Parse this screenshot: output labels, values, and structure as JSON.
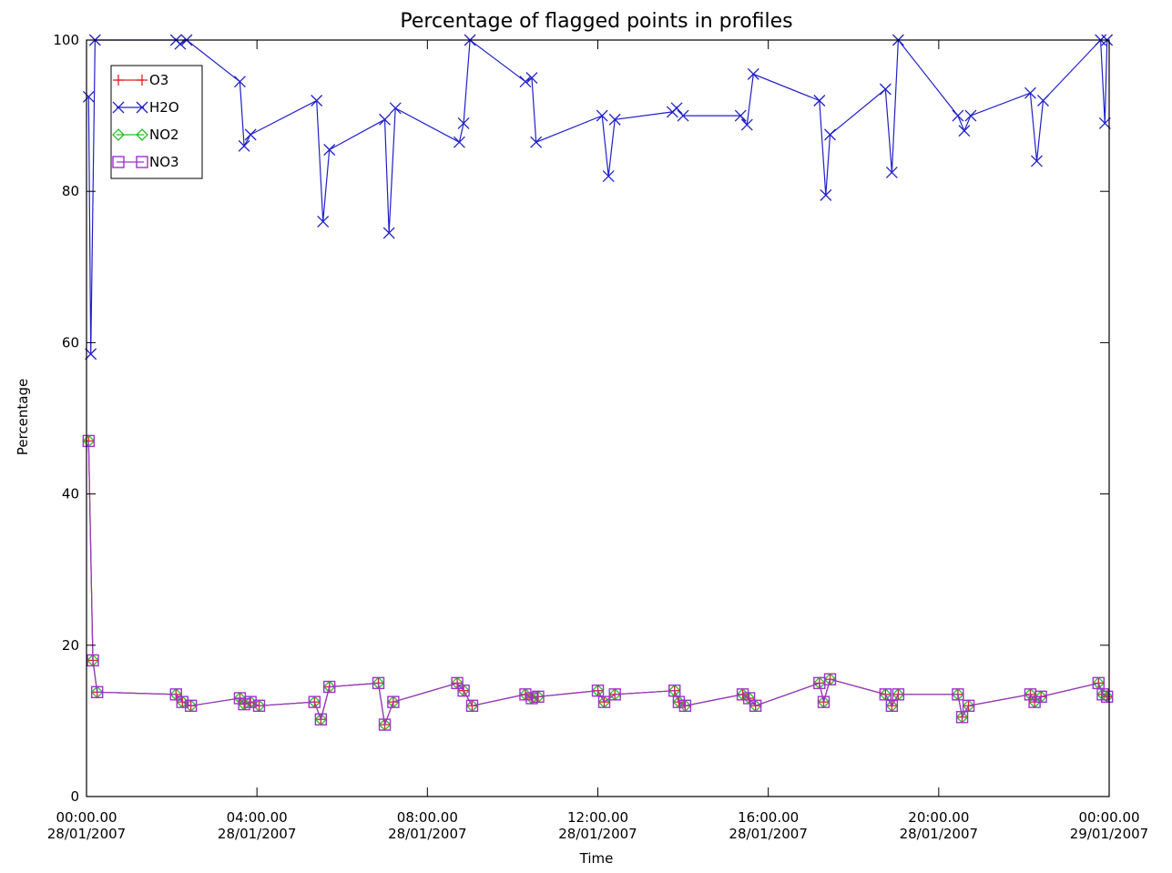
{
  "chart_data": {
    "type": "line",
    "title": "Percentage of flagged points in profiles",
    "xlabel": "Time",
    "ylabel": "Percentage",
    "ylim": [
      0,
      100
    ],
    "xlim_hours": [
      0,
      24
    ],
    "yticks": [
      "0",
      "20",
      "40",
      "60",
      "80",
      "100"
    ],
    "xticks": [
      {
        "time": "00:00.00",
        "date": "28/01/2007"
      },
      {
        "time": "04:00.00",
        "date": "28/01/2007"
      },
      {
        "time": "08:00.00",
        "date": "28/01/2007"
      },
      {
        "time": "12:00.00",
        "date": "28/01/2007"
      },
      {
        "time": "16:00.00",
        "date": "28/01/2007"
      },
      {
        "time": "20:00.00",
        "date": "28/01/2007"
      },
      {
        "time": "00:00.00",
        "date": "29/01/2007"
      }
    ],
    "grid": false,
    "legend_position": "top-left",
    "colors": {
      "O3": "#e0201e",
      "H2O": "#2020c8",
      "NO2": "#22c022",
      "NO3": "#a030d0",
      "axes": "#000000",
      "background": "#ffffff"
    },
    "series": [
      {
        "name": "O3",
        "marker": "plus",
        "x": [
          0.05,
          0.15,
          0.25,
          2.1,
          2.25,
          2.45,
          3.6,
          3.7,
          3.85,
          4.05,
          5.35,
          5.5,
          5.7,
          6.85,
          7.0,
          7.2,
          8.7,
          8.85,
          9.05,
          10.3,
          10.45,
          10.6,
          12.0,
          12.15,
          12.4,
          13.8,
          13.9,
          14.05,
          15.4,
          15.55,
          15.7,
          17.2,
          17.3,
          17.45,
          18.75,
          18.9,
          19.05,
          20.45,
          20.55,
          20.7,
          22.15,
          22.25,
          22.4,
          23.75,
          23.85,
          23.95
        ],
        "values": [
          47,
          18,
          13.8,
          13.5,
          12.5,
          12,
          13,
          12.2,
          12.5,
          12,
          12.5,
          10.2,
          14.5,
          15,
          9.5,
          12.5,
          15,
          14,
          12,
          13.5,
          13,
          13.2,
          14,
          12.5,
          13.5,
          14,
          12.5,
          12,
          13.5,
          13,
          12,
          15,
          12.5,
          15.5,
          13.5,
          12,
          13.5,
          13.5,
          10.5,
          12,
          13.5,
          12.5,
          13.2,
          15,
          13.5,
          13.2
        ]
      },
      {
        "name": "H2O",
        "marker": "cross",
        "x": [
          0.05,
          0.1,
          0.2,
          2.1,
          2.2,
          2.35,
          3.6,
          3.7,
          3.85,
          5.4,
          5.55,
          5.7,
          7.0,
          7.1,
          7.25,
          8.75,
          8.85,
          9.0,
          10.3,
          10.45,
          10.55,
          12.1,
          12.25,
          12.4,
          13.75,
          13.85,
          14.0,
          15.35,
          15.5,
          15.65,
          17.2,
          17.35,
          17.45,
          18.75,
          18.9,
          19.05,
          20.45,
          20.6,
          20.75,
          22.15,
          22.3,
          22.45,
          23.8,
          23.9,
          23.95
        ],
        "values": [
          92.5,
          58.5,
          100,
          100,
          99.5,
          100,
          94.5,
          86,
          87.5,
          92,
          76,
          85.5,
          89.5,
          74.5,
          91,
          86.5,
          89,
          100,
          94.5,
          95,
          86.5,
          90,
          82,
          89.5,
          90.5,
          91,
          90,
          90,
          88.8,
          95.5,
          92,
          79.5,
          87.5,
          93.5,
          82.5,
          100,
          90,
          88,
          90,
          93,
          84,
          92,
          100,
          89,
          100
        ]
      },
      {
        "name": "NO2",
        "marker": "diamond",
        "x": [
          0.05,
          0.15,
          0.25,
          2.1,
          2.25,
          2.45,
          3.6,
          3.7,
          3.85,
          4.05,
          5.35,
          5.5,
          5.7,
          6.85,
          7.0,
          7.2,
          8.7,
          8.85,
          9.05,
          10.3,
          10.45,
          10.6,
          12.0,
          12.15,
          12.4,
          13.8,
          13.9,
          14.05,
          15.4,
          15.55,
          15.7,
          17.2,
          17.3,
          17.45,
          18.75,
          18.9,
          19.05,
          20.45,
          20.55,
          20.7,
          22.15,
          22.25,
          22.4,
          23.75,
          23.85,
          23.95
        ],
        "values": [
          47,
          18,
          13.8,
          13.5,
          12.5,
          12,
          13,
          12.2,
          12.5,
          12,
          12.5,
          10.2,
          14.5,
          15,
          9.5,
          12.5,
          15,
          14,
          12,
          13.5,
          13,
          13.2,
          14,
          12.5,
          13.5,
          14,
          12.5,
          12,
          13.5,
          13,
          12,
          15,
          12.5,
          15.5,
          13.5,
          12,
          13.5,
          13.5,
          10.5,
          12,
          13.5,
          12.5,
          13.2,
          15,
          13.5,
          13.2
        ]
      },
      {
        "name": "NO3",
        "marker": "square",
        "x": [
          0.05,
          0.15,
          0.25,
          2.1,
          2.25,
          2.45,
          3.6,
          3.7,
          3.85,
          4.05,
          5.35,
          5.5,
          5.7,
          6.85,
          7.0,
          7.2,
          8.7,
          8.85,
          9.05,
          10.3,
          10.45,
          10.6,
          12.0,
          12.15,
          12.4,
          13.8,
          13.9,
          14.05,
          15.4,
          15.55,
          15.7,
          17.2,
          17.3,
          17.45,
          18.75,
          18.9,
          19.05,
          20.45,
          20.55,
          20.7,
          22.15,
          22.25,
          22.4,
          23.75,
          23.85,
          23.95
        ],
        "values": [
          47,
          18,
          13.8,
          13.5,
          12.5,
          12,
          13,
          12.2,
          12.5,
          12,
          12.5,
          10.2,
          14.5,
          15,
          9.5,
          12.5,
          15,
          14,
          12,
          13.5,
          13,
          13.2,
          14,
          12.5,
          13.5,
          14,
          12.5,
          12,
          13.5,
          13,
          12,
          15,
          12.5,
          15.5,
          13.5,
          12,
          13.5,
          13.5,
          10.5,
          12,
          13.5,
          12.5,
          13.2,
          15,
          13.5,
          13.2
        ]
      }
    ]
  }
}
